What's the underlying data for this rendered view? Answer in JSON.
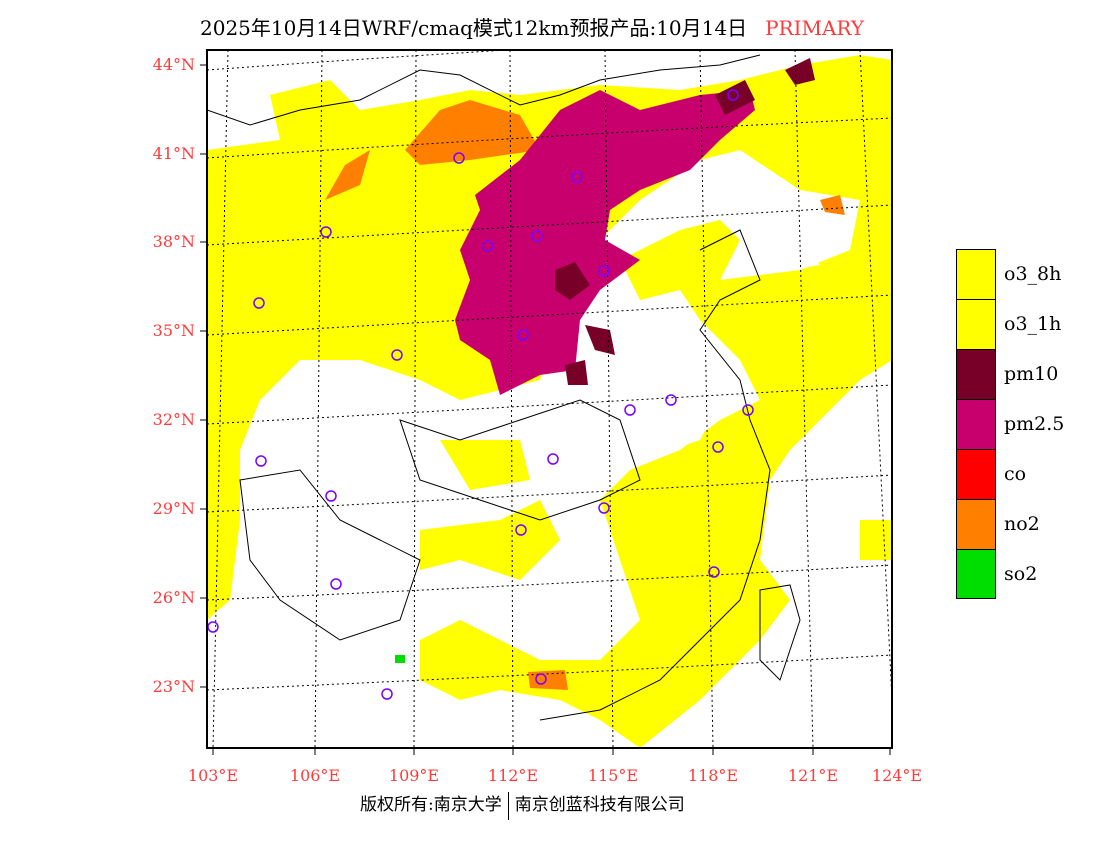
{
  "header": {
    "title": "2025年10月14日WRF/cmaq模式12km预报产品:10月14日",
    "tag": "PRIMARY"
  },
  "axes": {
    "lat_labels": [
      "44°N",
      "41°N",
      "38°N",
      "35°N",
      "32°N",
      "29°N",
      "26°N",
      "23°N"
    ],
    "lon_labels": [
      "103°E",
      "106°E",
      "109°E",
      "112°E",
      "115°E",
      "118°E",
      "121°E",
      "124°E"
    ]
  },
  "legend": [
    {
      "label": "o3_8h",
      "color": "#ffff00"
    },
    {
      "label": "o3_1h",
      "color": "#ffff00"
    },
    {
      "label": "pm10",
      "color": "#780028"
    },
    {
      "label": "pm2.5",
      "color": "#c8006e"
    },
    {
      "label": "co",
      "color": "#ff0000"
    },
    {
      "label": "no2",
      "color": "#ff8000"
    },
    {
      "label": "so2",
      "color": "#00dd00"
    }
  ],
  "footer": {
    "left": "版权所有:南京大学",
    "right": "南京创蓝科技有限公司"
  }
}
